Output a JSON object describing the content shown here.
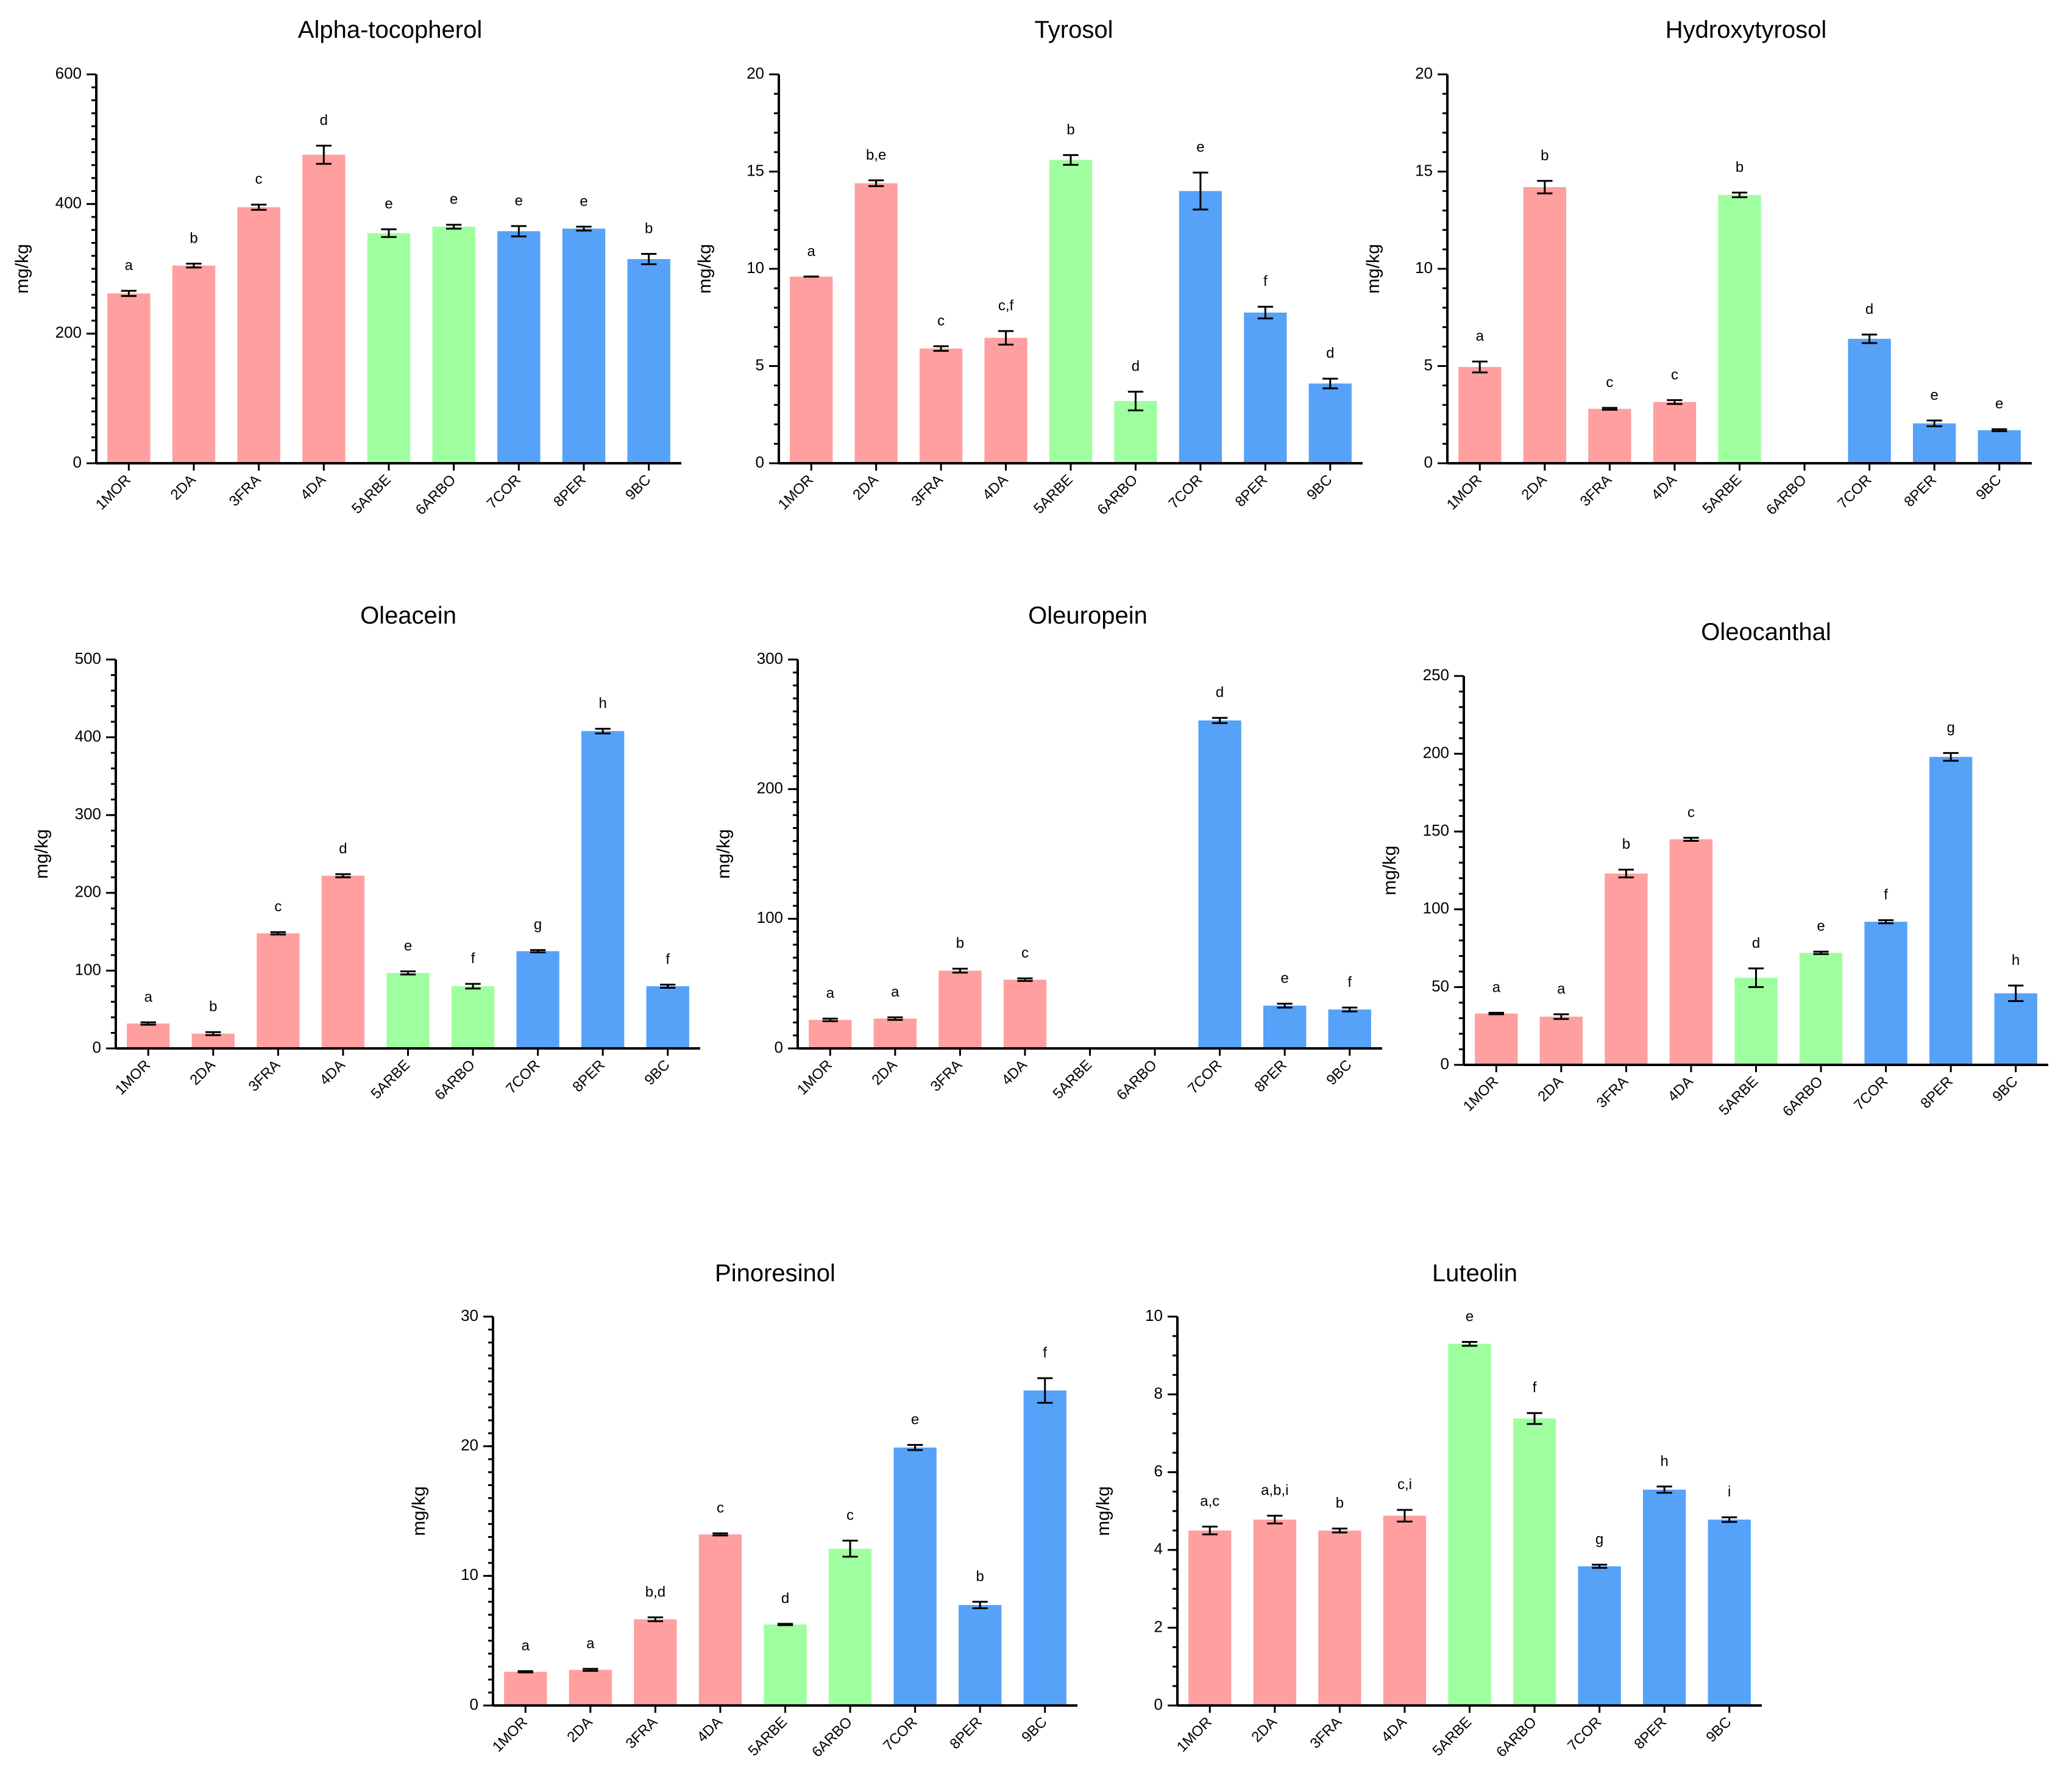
{
  "figure": {
    "group_colors": {
      "pink": "#FF9F9F",
      "green": "#9FFF9F",
      "blue": "#55A2F8"
    }
  },
  "chart_data": [
    {
      "type": "bar",
      "title": "Alpha-tocopherol",
      "ylabel": "mg/kg",
      "ylim": [
        0,
        600
      ],
      "yticks": [
        0,
        200,
        400,
        600
      ],
      "minor_step": 20,
      "categories": [
        "1MOR",
        "2DA",
        "3FRA",
        "4DA",
        "5ARBE",
        "6ARBO",
        "7COR",
        "8PER",
        "9BC"
      ],
      "groups": [
        "pink",
        "pink",
        "pink",
        "pink",
        "green",
        "green",
        "blue",
        "blue",
        "blue"
      ],
      "values": [
        262,
        305,
        395,
        476,
        355,
        365,
        358,
        362,
        315
      ],
      "errors": [
        4,
        3,
        4,
        14,
        6,
        3,
        8,
        3,
        8
      ],
      "letters": [
        "a",
        "b",
        "c",
        "d",
        "e",
        "e",
        "e",
        "e",
        "b"
      ]
    },
    {
      "type": "bar",
      "title": "Tyrosol",
      "ylabel": "mg/kg",
      "ylim": [
        0,
        20
      ],
      "yticks": [
        0,
        5,
        10,
        15,
        20
      ],
      "minor_step": 1,
      "categories": [
        "1MOR",
        "2DA",
        "3FRA",
        "4DA",
        "5ARBE",
        "6ARBO",
        "7COR",
        "8PER",
        "9BC"
      ],
      "groups": [
        "pink",
        "pink",
        "pink",
        "pink",
        "green",
        "green",
        "blue",
        "blue",
        "blue"
      ],
      "values": [
        9.6,
        14.4,
        5.9,
        6.45,
        15.6,
        3.2,
        14.0,
        7.75,
        4.1
      ],
      "errors": [
        0,
        0.15,
        0.12,
        0.35,
        0.25,
        0.48,
        0.95,
        0.3,
        0.25
      ],
      "letters": [
        "a",
        "b,e",
        "c",
        "c,f",
        "b",
        "d",
        "e",
        "f",
        "d"
      ]
    },
    {
      "type": "bar",
      "title": "Hydroxytyrosol",
      "ylabel": "mg/kg",
      "ylim": [
        0,
        20
      ],
      "yticks": [
        0,
        5,
        10,
        15,
        20
      ],
      "minor_step": 1,
      "categories": [
        "1MOR",
        "2DA",
        "3FRA",
        "4DA",
        "5ARBE",
        "6ARBO",
        "7COR",
        "8PER",
        "9BC"
      ],
      "groups": [
        "pink",
        "pink",
        "pink",
        "pink",
        "green",
        "green",
        "blue",
        "blue",
        "blue"
      ],
      "values": [
        4.95,
        14.2,
        2.8,
        3.15,
        13.8,
        0,
        6.4,
        2.05,
        1.7
      ],
      "errors": [
        0.28,
        0.32,
        0.05,
        0.1,
        0.12,
        0,
        0.22,
        0.15,
        0.05
      ],
      "letters": [
        "a",
        "b",
        "c",
        "c",
        "b",
        "",
        "d",
        "e",
        "e"
      ]
    },
    {
      "type": "bar",
      "title": "Oleacein",
      "ylabel": "mg/kg",
      "ylim": [
        0,
        500
      ],
      "yticks": [
        0,
        100,
        200,
        300,
        400,
        500
      ],
      "minor_step": 20,
      "categories": [
        "1MOR",
        "2DA",
        "3FRA",
        "4DA",
        "5ARBE",
        "6ARBO",
        "7COR",
        "8PER",
        "9BC"
      ],
      "groups": [
        "pink",
        "pink",
        "pink",
        "pink",
        "green",
        "green",
        "blue",
        "blue",
        "blue"
      ],
      "values": [
        32,
        19,
        148,
        222,
        97,
        80,
        125,
        408,
        80
      ],
      "errors": [
        1.5,
        2,
        1.5,
        2,
        2,
        3,
        1.5,
        3,
        2
      ],
      "letters": [
        "a",
        "b",
        "c",
        "d",
        "e",
        "f",
        "g",
        "h",
        "f"
      ]
    },
    {
      "type": "bar",
      "title": "Oleuropein",
      "ylabel": "mg/kg",
      "ylim": [
        0,
        300
      ],
      "yticks": [
        0,
        100,
        200,
        300
      ],
      "minor_step": 10,
      "categories": [
        "1MOR",
        "2DA",
        "3FRA",
        "4DA",
        "5ARBE",
        "6ARBO",
        "7COR",
        "8PER",
        "9BC"
      ],
      "groups": [
        "pink",
        "pink",
        "pink",
        "pink",
        "green",
        "green",
        "blue",
        "blue",
        "blue"
      ],
      "values": [
        22,
        23,
        60,
        53,
        0,
        0,
        253,
        33,
        30
      ],
      "errors": [
        1,
        1,
        1.5,
        1,
        0,
        0,
        2,
        1.5,
        1.5
      ],
      "letters": [
        "a",
        "a",
        "b",
        "c",
        "",
        "",
        "d",
        "e",
        "f"
      ]
    },
    {
      "type": "bar",
      "title": "Oleocanthal",
      "ylabel": "mg/kg",
      "ylim": [
        0,
        250
      ],
      "yticks": [
        0,
        50,
        100,
        150,
        200,
        250
      ],
      "minor_step": 10,
      "categories": [
        "1MOR",
        "2DA",
        "3FRA",
        "4DA",
        "5ARBE",
        "6ARBO",
        "7COR",
        "8PER",
        "9BC"
      ],
      "groups": [
        "pink",
        "pink",
        "pink",
        "pink",
        "green",
        "green",
        "blue",
        "blue",
        "blue"
      ],
      "values": [
        33,
        31,
        123,
        145,
        56,
        72,
        92,
        198,
        46
      ],
      "errors": [
        0.5,
        1.5,
        2.5,
        1,
        6,
        0.8,
        1,
        2.5,
        5
      ],
      "letters": [
        "a",
        "a",
        "b",
        "c",
        "d",
        "e",
        "f",
        "g",
        "h"
      ]
    },
    {
      "type": "bar",
      "title": "Pinoresinol",
      "ylabel": "mg/kg",
      "ylim": [
        0,
        30
      ],
      "yticks": [
        0,
        10,
        20,
        30
      ],
      "minor_step": 1,
      "categories": [
        "1MOR",
        "2DA",
        "3FRA",
        "4DA",
        "5ARBE",
        "6ARBO",
        "7COR",
        "8PER",
        "9BC"
      ],
      "groups": [
        "pink",
        "pink",
        "pink",
        "pink",
        "green",
        "green",
        "blue",
        "blue",
        "blue"
      ],
      "values": [
        2.6,
        2.75,
        6.65,
        13.2,
        6.25,
        12.1,
        19.9,
        7.75,
        24.3
      ],
      "errors": [
        0.05,
        0.08,
        0.15,
        0.08,
        0.05,
        0.62,
        0.2,
        0.25,
        0.95
      ],
      "letters": [
        "a",
        "a",
        "b,d",
        "c",
        "d",
        "c",
        "e",
        "b",
        "f"
      ]
    },
    {
      "type": "bar",
      "title": "Luteolin",
      "ylabel": "mg/kg",
      "ylim": [
        0,
        10
      ],
      "yticks": [
        0,
        2,
        4,
        6,
        8,
        10
      ],
      "minor_step": 0.5,
      "categories": [
        "1MOR",
        "2DA",
        "3FRA",
        "4DA",
        "5ARBE",
        "6ARBO",
        "7COR",
        "8PER",
        "9BC"
      ],
      "groups": [
        "pink",
        "pink",
        "pink",
        "pink",
        "green",
        "green",
        "blue",
        "blue",
        "blue"
      ],
      "values": [
        4.5,
        4.78,
        4.5,
        4.88,
        9.3,
        7.38,
        3.58,
        5.55,
        4.78
      ],
      "errors": [
        0.1,
        0.1,
        0.05,
        0.15,
        0.05,
        0.14,
        0.04,
        0.08,
        0.06
      ],
      "letters": [
        "a,c",
        "a,b,i",
        "b",
        "c,i",
        "e",
        "f",
        "g",
        "h",
        "i"
      ]
    }
  ]
}
